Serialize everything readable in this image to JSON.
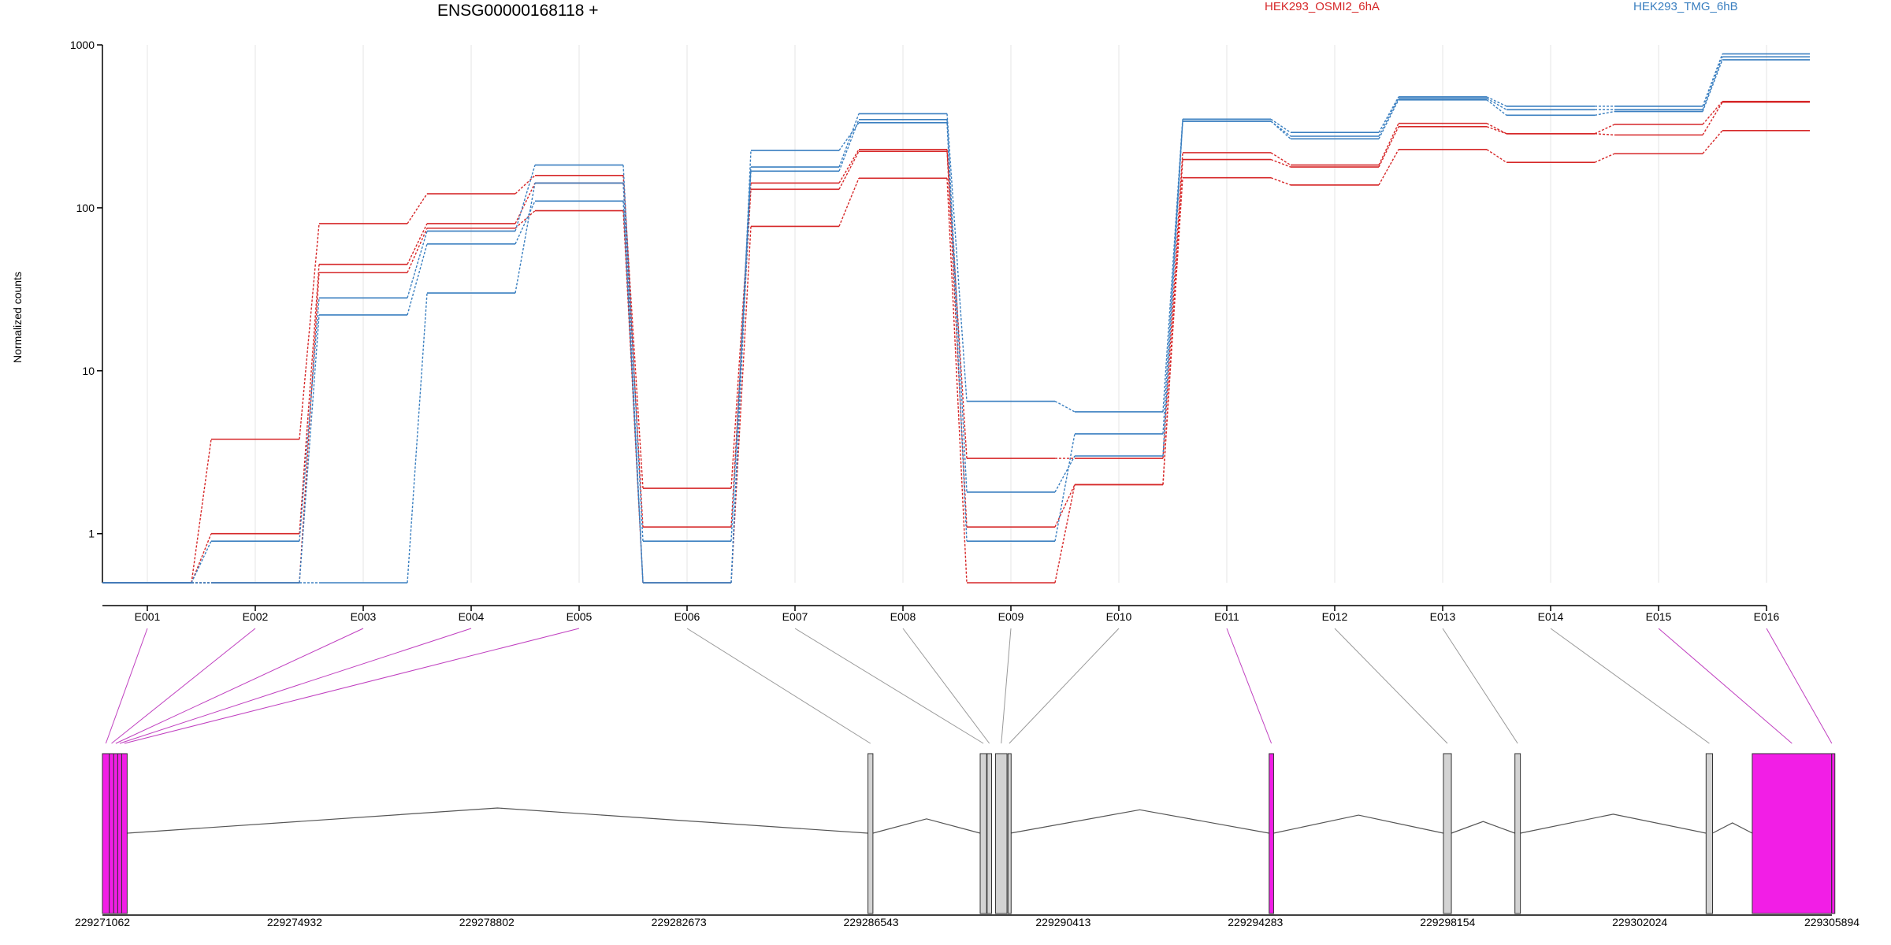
{
  "chart_data": {
    "type": "line",
    "title": "ENSG00000168118 +",
    "ylabel": "Normalized counts",
    "yscale": "log",
    "ylim": [
      0.5,
      1000
    ],
    "yticks": [
      1,
      10,
      100,
      1000
    ],
    "ytick_labels": [
      "1",
      "10",
      "100",
      "1000"
    ],
    "categories": [
      "E001",
      "E002",
      "E003",
      "E004",
      "E005",
      "E006",
      "E007",
      "E008",
      "E009",
      "E010",
      "E011",
      "E012",
      "E013",
      "E014",
      "E015",
      "E016"
    ],
    "legend": [
      {
        "name": "HEK293_OSMI2_6hA",
        "color": "#d62728"
      },
      {
        "name": "HEK293_TMG_6hB",
        "color": "#3a7fc0"
      }
    ],
    "series": [
      {
        "group": "HEK293_OSMI2_6hA",
        "values": [
          0.5,
          3.8,
          80,
          122,
          158,
          1.9,
          142,
          228,
          2.9,
          2.9,
          218,
          183,
          330,
          285,
          325,
          450
        ]
      },
      {
        "group": "HEK293_OSMI2_6hA",
        "values": [
          0.5,
          1.0,
          45,
          80,
          142,
          1.1,
          130,
          222,
          1.1,
          2.0,
          198,
          178,
          315,
          285,
          280,
          445
        ]
      },
      {
        "group": "HEK293_OSMI2_6hA",
        "values": [
          0.5,
          0.5,
          40,
          75,
          96,
          0.5,
          77,
          152,
          0.5,
          2.0,
          153,
          138,
          228,
          190,
          215,
          298
        ]
      },
      {
        "group": "HEK293_TMG_6hB",
        "values": [
          0.5,
          0.9,
          28,
          72,
          183,
          0.9,
          178,
          378,
          6.5,
          5.6,
          350,
          290,
          480,
          420,
          420,
          880
        ]
      },
      {
        "group": "HEK293_TMG_6hB",
        "values": [
          0.5,
          0.5,
          22,
          60,
          110,
          0.5,
          168,
          348,
          1.8,
          3.0,
          340,
          275,
          470,
          400,
          400,
          845
        ]
      },
      {
        "group": "HEK293_TMG_6hB",
        "values": [
          0.5,
          0.5,
          0.5,
          30,
          142,
          0.5,
          225,
          333,
          0.9,
          4.1,
          340,
          265,
          460,
          370,
          390,
          810
        ]
      }
    ],
    "genomic_axis": {
      "tick_labels": [
        "229271062",
        "229274932",
        "229278802",
        "229282673",
        "229286543",
        "229290413",
        "229294283",
        "229298154",
        "229302024",
        "229305894"
      ]
    },
    "exons": [
      {
        "id": "E001",
        "start": 229271062,
        "end": 229271200,
        "highlight": true
      },
      {
        "id": "E002",
        "start": 229271200,
        "end": 229271290,
        "highlight": true
      },
      {
        "id": "E003",
        "start": 229271290,
        "end": 229271370,
        "highlight": true
      },
      {
        "id": "E004",
        "start": 229271370,
        "end": 229271450,
        "highlight": true
      },
      {
        "id": "E005",
        "start": 229271450,
        "end": 229271560,
        "highlight": true
      },
      {
        "id": "E006",
        "start": 229286480,
        "end": 229286580,
        "highlight": false
      },
      {
        "id": "E007",
        "start": 229288740,
        "end": 229288870,
        "highlight": false
      },
      {
        "id": "E008",
        "start": 229288880,
        "end": 229288970,
        "highlight": false
      },
      {
        "id": "E009",
        "start": 229289050,
        "end": 229289280,
        "highlight": false
      },
      {
        "id": "E010",
        "start": 229289300,
        "end": 229289350,
        "highlight": false
      },
      {
        "id": "E011",
        "start": 229294560,
        "end": 229294650,
        "highlight": true
      },
      {
        "id": "E012",
        "start": 229298070,
        "end": 229298230,
        "highlight": false
      },
      {
        "id": "E013",
        "start": 229299510,
        "end": 229299620,
        "highlight": false
      },
      {
        "id": "E014",
        "start": 229303360,
        "end": 229303490,
        "highlight": false
      },
      {
        "id": "E015",
        "start": 229304290,
        "end": 229305890,
        "highlight": true
      },
      {
        "id": "E016",
        "start": 229305890,
        "end": 229305894,
        "highlight": true
      }
    ]
  },
  "colors": {
    "osmi": "#d62728",
    "tmg": "#3a7fc0",
    "highlight_exon": "#f21ee6",
    "plain_exon": "#d3d3d3",
    "connector_plain": "#999999",
    "connector_highlight": "#c040c0"
  }
}
